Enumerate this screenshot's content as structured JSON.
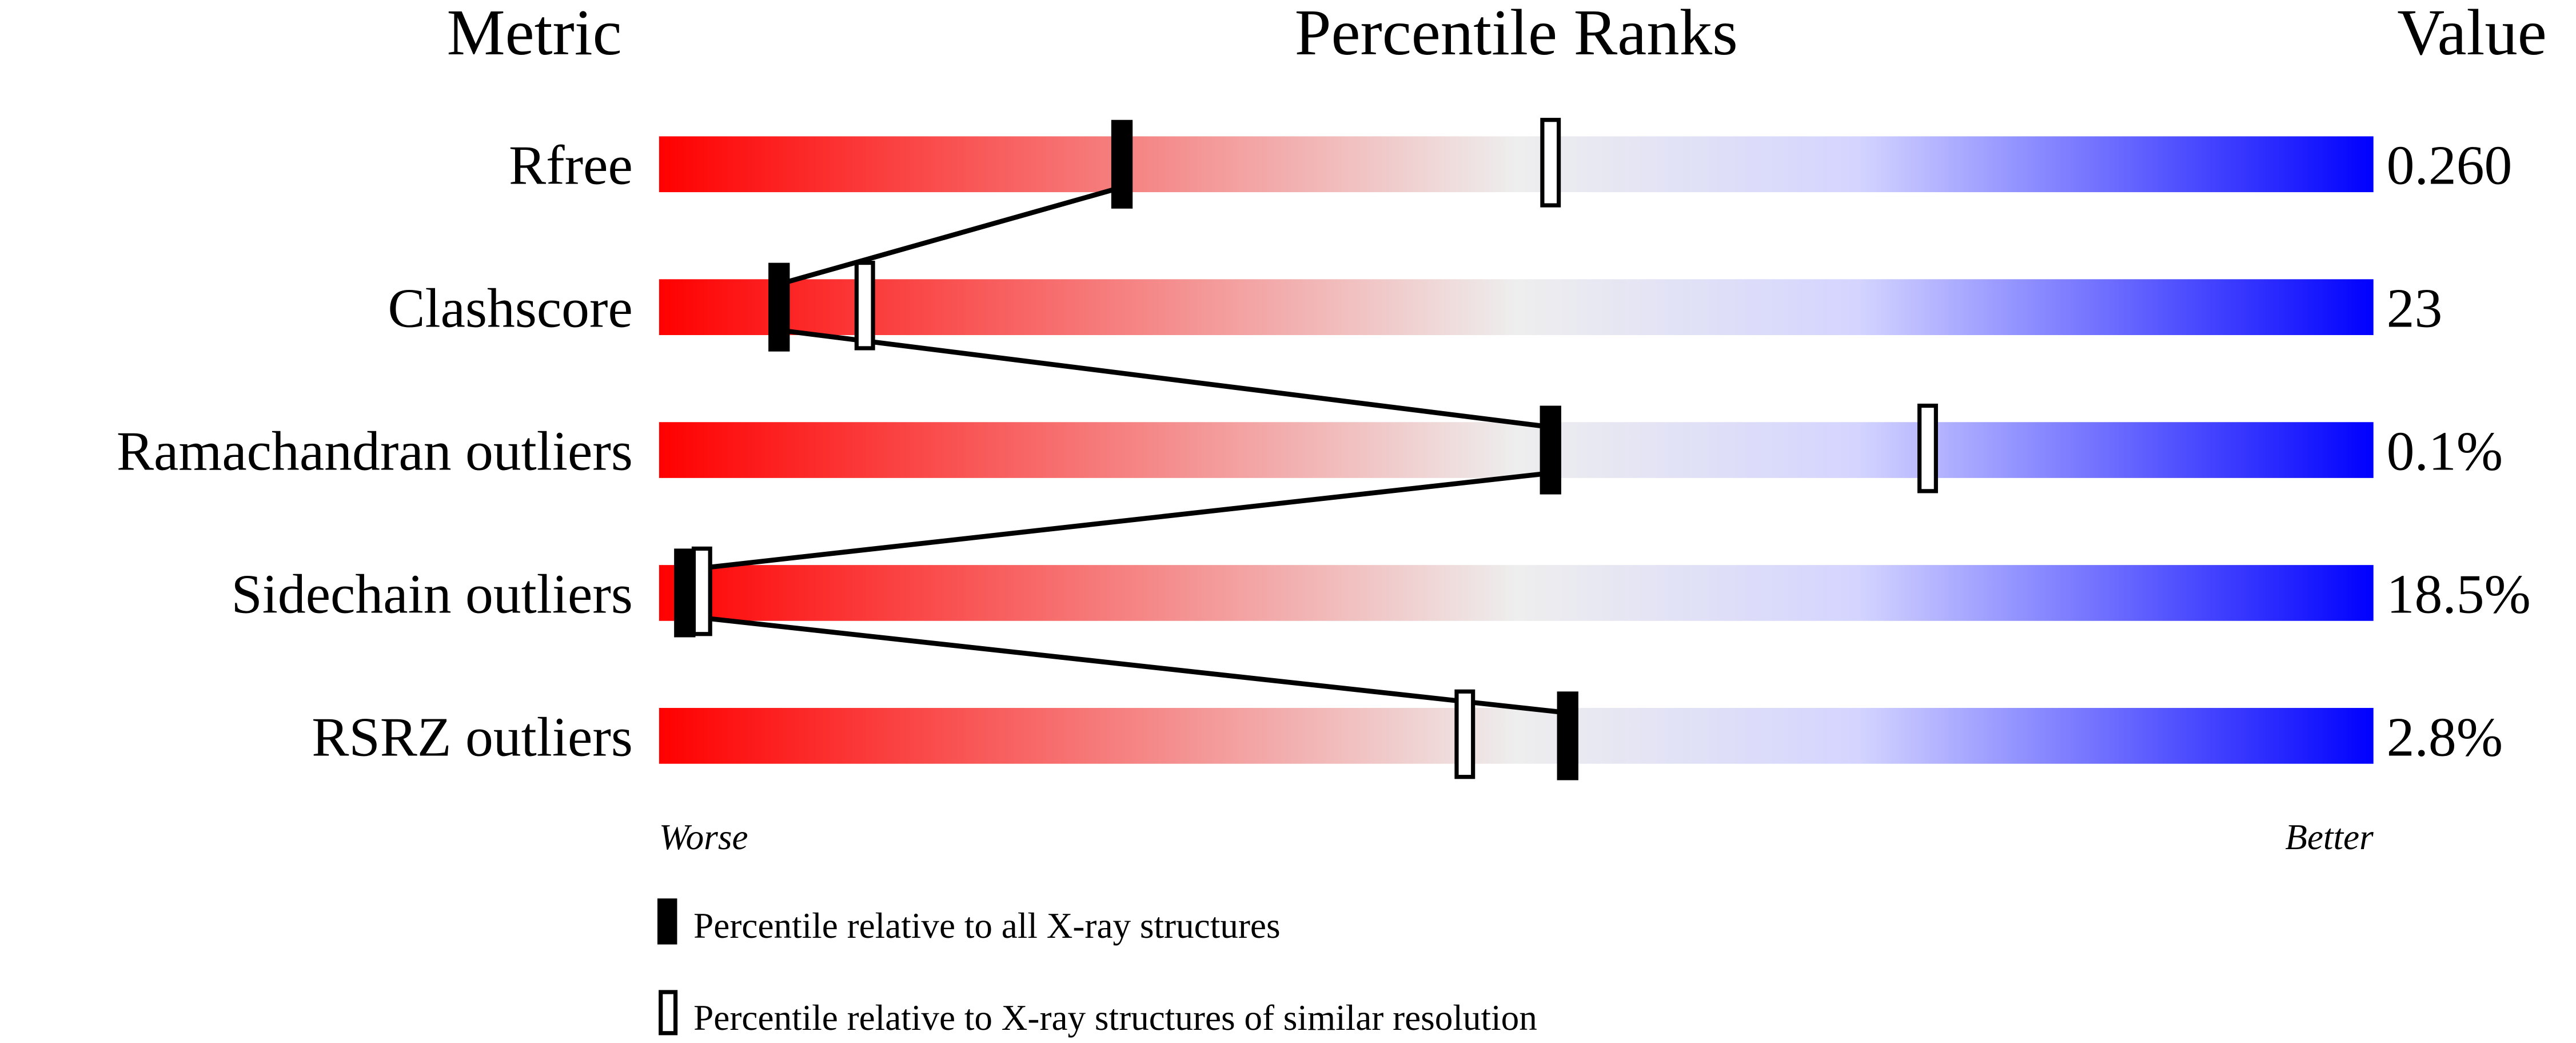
{
  "chart_data": {
    "type": "percentile-bar",
    "headers": {
      "metric": "Metric",
      "ranks": "Percentile Ranks",
      "value": "Value"
    },
    "axis": {
      "left": "Worse",
      "right": "Better",
      "range": [
        0,
        100
      ]
    },
    "colors": {
      "worse": "#ff0000",
      "middle": "#eeeeee",
      "better": "#0000ff",
      "marker": "#000000"
    },
    "rows": [
      {
        "metric": "Rfree",
        "value": "0.260",
        "percentile_all": 27,
        "percentile_similar": 52
      },
      {
        "metric": "Clashscore",
        "value": "23",
        "percentile_all": 7,
        "percentile_similar": 12
      },
      {
        "metric": "Ramachandran outliers",
        "value": "0.1%",
        "percentile_all": 52,
        "percentile_similar": 74
      },
      {
        "metric": "Sidechain outliers",
        "value": "18.5%",
        "percentile_all": 1.5,
        "percentile_similar": 2.5
      },
      {
        "metric": "RSRZ outliers",
        "value": "2.8%",
        "percentile_all": 53,
        "percentile_similar": 47
      }
    ],
    "legend": [
      {
        "marker": "filled",
        "label": "Percentile relative to all X-ray structures"
      },
      {
        "marker": "open",
        "label": "Percentile relative to X-ray structures of similar resolution"
      }
    ]
  }
}
